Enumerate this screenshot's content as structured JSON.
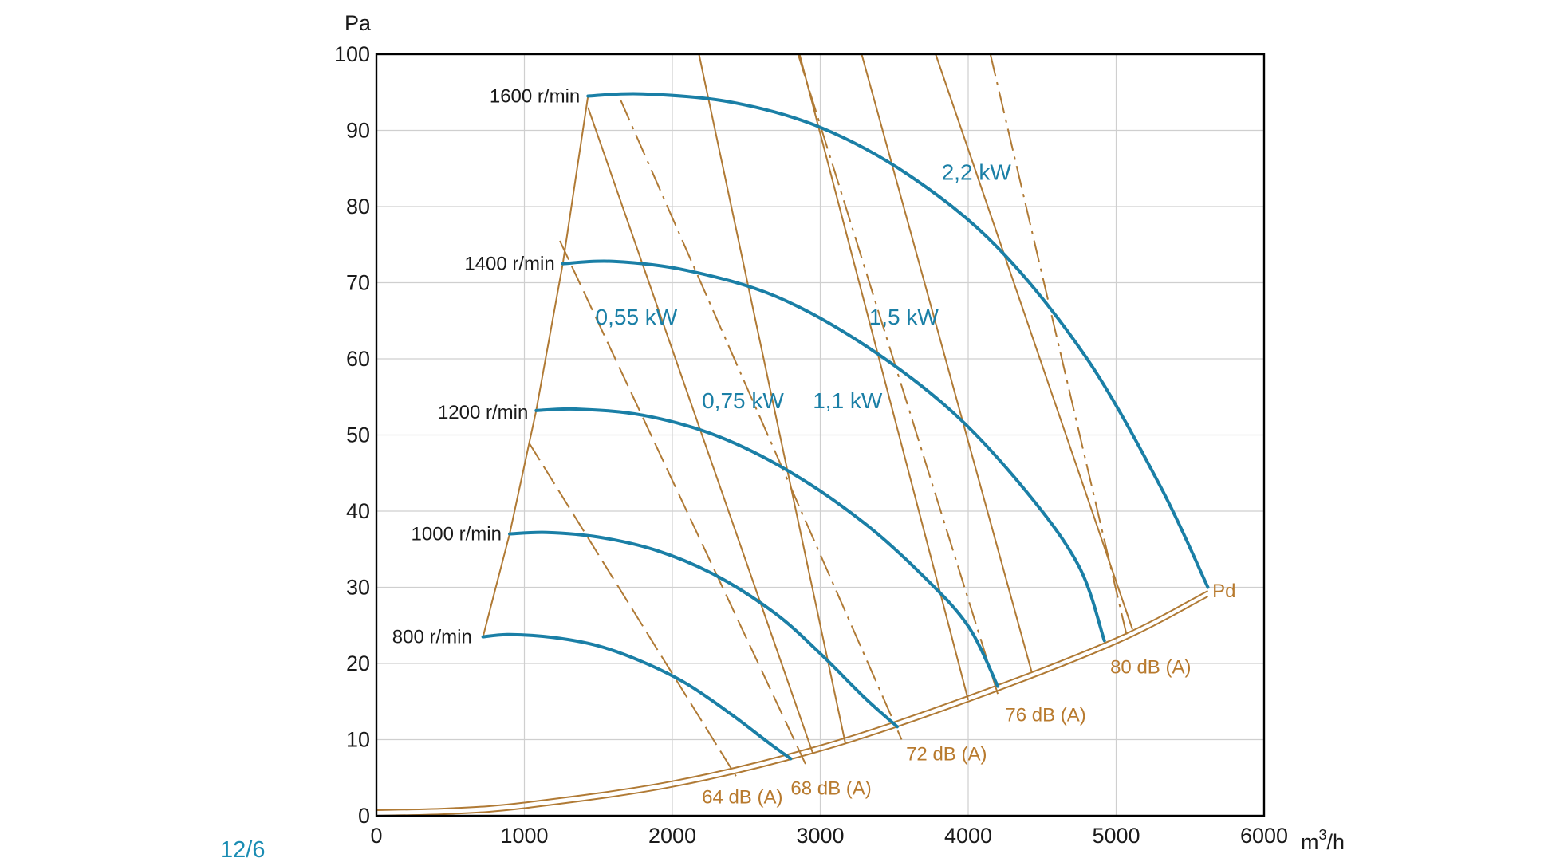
{
  "figure_number": "12/6",
  "chart_data": {
    "type": "line",
    "title": "",
    "xlabel": "m3/h",
    "xlabel_base": "m",
    "xlabel_sup": "3",
    "xlabel_tail": "/h",
    "ylabel": "Pa",
    "xlim": [
      0,
      6000
    ],
    "ylim": [
      0,
      100
    ],
    "x_ticks": [
      0,
      1000,
      2000,
      3000,
      4000,
      5000,
      6000
    ],
    "y_ticks": [
      0,
      10,
      20,
      30,
      40,
      50,
      60,
      70,
      80,
      90,
      100
    ],
    "grid": true,
    "colors": {
      "fan_curve": "#1a7fa6",
      "overlay": "#b07a35",
      "overlay_label": "#b87a2e"
    },
    "fan_curves": [
      {
        "name": "800 r/min",
        "label_at": [
          700,
          23.5
        ],
        "points": [
          [
            720,
            23.5
          ],
          [
            900,
            23.8
          ],
          [
            1200,
            23.4
          ],
          [
            1500,
            22.3
          ],
          [
            1800,
            20.2
          ],
          [
            2100,
            17.3
          ],
          [
            2400,
            13.3
          ],
          [
            2650,
            9.6
          ],
          [
            2800,
            7.5
          ]
        ]
      },
      {
        "name": "1000 r/min",
        "label_at": [
          900,
          37
        ],
        "points": [
          [
            900,
            37
          ],
          [
            1150,
            37.2
          ],
          [
            1500,
            36.6
          ],
          [
            1900,
            34.8
          ],
          [
            2300,
            31.5
          ],
          [
            2700,
            26.5
          ],
          [
            3000,
            21.3
          ],
          [
            3300,
            15.5
          ],
          [
            3520,
            11.7
          ]
        ]
      },
      {
        "name": "1200 r/min",
        "label_at": [
          1080,
          53
        ],
        "points": [
          [
            1080,
            53.2
          ],
          [
            1350,
            53.4
          ],
          [
            1800,
            52.6
          ],
          [
            2300,
            49.9
          ],
          [
            2800,
            45.1
          ],
          [
            3300,
            38.4
          ],
          [
            3700,
            31.4
          ],
          [
            4000,
            24.9
          ],
          [
            4200,
            17
          ]
        ]
      },
      {
        "name": "1400 r/min",
        "label_at": [
          1260,
          72.5
        ],
        "points": [
          [
            1260,
            72.5
          ],
          [
            1600,
            72.8
          ],
          [
            2100,
            71.6
          ],
          [
            2700,
            68.2
          ],
          [
            3300,
            61.8
          ],
          [
            3900,
            52.9
          ],
          [
            4400,
            42.4
          ],
          [
            4750,
            32.7
          ],
          [
            4920,
            23
          ]
        ]
      },
      {
        "name": "1600 r/min",
        "label_at": [
          1430,
          94.5
        ],
        "points": [
          [
            1430,
            94.5
          ],
          [
            1800,
            94.8
          ],
          [
            2400,
            93.7
          ],
          [
            3000,
            90.4
          ],
          [
            3600,
            84.1
          ],
          [
            4200,
            74.6
          ],
          [
            4800,
            60.1
          ],
          [
            5300,
            43.2
          ],
          [
            5620,
            30
          ]
        ]
      }
    ],
    "rpm_boundary": [
      [
        720,
        23.5
      ],
      [
        900,
        37
      ],
      [
        1080,
        53.2
      ],
      [
        1260,
        72.5
      ],
      [
        1430,
        94.5
      ]
    ],
    "pd_curve": {
      "name": "Pd",
      "label_at": [
        5650,
        28.7
      ],
      "points": [
        [
          0,
          0
        ],
        [
          500,
          0.25
        ],
        [
          1000,
          1
        ],
        [
          2000,
          3.8
        ],
        [
          3000,
          8.5
        ],
        [
          4000,
          15
        ],
        [
          5000,
          22.6
        ],
        [
          5620,
          28.8
        ]
      ]
    },
    "power_lines": [
      {
        "name": "0,55 kW",
        "label_at": [
          1480,
          64.5
        ],
        "points": [
          [
            1430,
            93
          ],
          [
            2950,
            8.2
          ]
        ]
      },
      {
        "name": "0,75 kW",
        "label_at": [
          2200,
          53.5
        ],
        "points": [
          [
            2180,
            100
          ],
          [
            3170,
            9.5
          ]
        ]
      },
      {
        "name": "1,1 kW",
        "label_at": [
          2950,
          53.5
        ],
        "points": [
          [
            2860,
            100
          ],
          [
            4000,
            15.2
          ]
        ]
      },
      {
        "name": "1,5 kW",
        "label_at": [
          3330,
          64.5
        ],
        "points": [
          [
            3280,
            100
          ],
          [
            4430,
            18.8
          ]
        ]
      },
      {
        "name": "2,2 kW",
        "label_at": [
          3820,
          83.5
        ],
        "points": [
          [
            3780,
            100
          ],
          [
            5110,
            24.5
          ]
        ]
      }
    ],
    "noise_lines": [
      {
        "name": "64 dB (A)",
        "label_at": [
          2200,
          1.6
        ],
        "style": "dashed",
        "points": [
          [
            1030,
            49
          ],
          [
            2430,
            5.2
          ]
        ]
      },
      {
        "name": "68 dB (A)",
        "label_at": [
          2800,
          2.8
        ],
        "style": "dashed",
        "points": [
          [
            1240,
            75.5
          ],
          [
            2900,
            6.8
          ]
        ]
      },
      {
        "name": "72 dB (A)",
        "label_at": [
          3580,
          7.3
        ],
        "style": "dashdot",
        "points": [
          [
            1650,
            94
          ],
          [
            3550,
            10
          ]
        ]
      },
      {
        "name": "76 dB (A)",
        "label_at": [
          4250,
          12.4
        ],
        "style": "dashdot",
        "points": [
          [
            2850,
            100
          ],
          [
            4200,
            16
          ]
        ]
      },
      {
        "name": "80 dB (A)",
        "label_at": [
          4960,
          18.7
        ],
        "style": "dashdot",
        "points": [
          [
            4150,
            100
          ],
          [
            5070,
            23.8
          ]
        ]
      }
    ]
  }
}
